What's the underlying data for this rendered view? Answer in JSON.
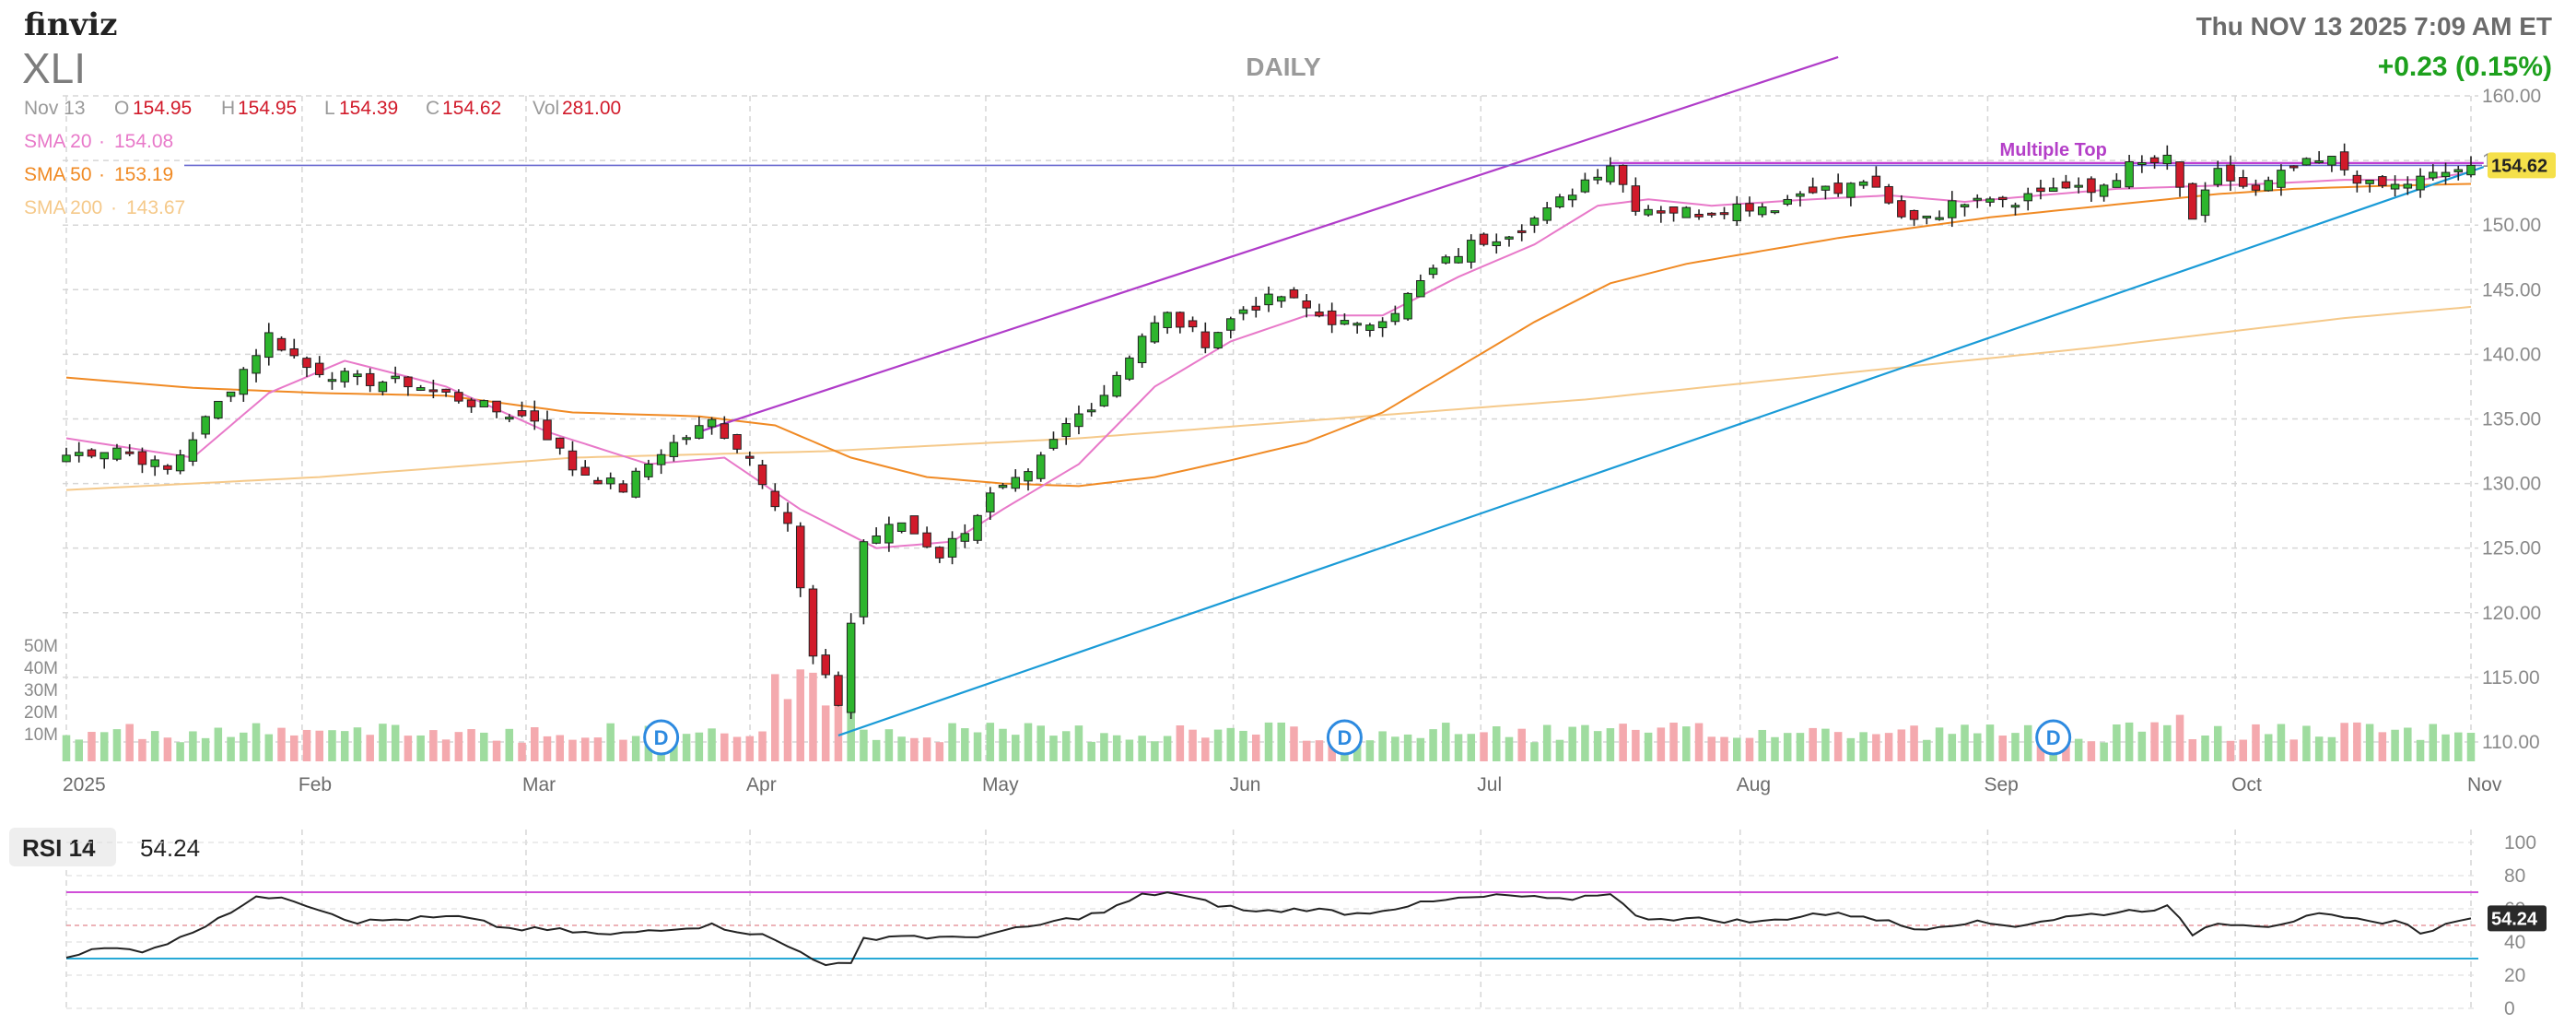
{
  "header": {
    "logo": "finviz",
    "ticker": "XLI",
    "timeframe": "DAILY",
    "datetime": "Thu NOV 13 2025 7:09 AM ET",
    "change": "+0.23 (0.15%)"
  },
  "ohlc": {
    "date": "Nov 13",
    "o_label": "O",
    "o": "154.95",
    "h_label": "H",
    "h": "154.95",
    "l_label": "L",
    "l": "154.39",
    "c_label": "C",
    "c": "154.62",
    "vol_label": "Vol",
    "vol": "281.00"
  },
  "sma_legend": [
    {
      "label": "SMA 20",
      "value": "154.08",
      "color": "#e879c9"
    },
    {
      "label": "SMA 50",
      "value": "153.19",
      "color": "#f08a24"
    },
    {
      "label": "SMA 200",
      "value": "143.67",
      "color": "#f5c98a"
    }
  ],
  "colors": {
    "up": "#2db52d",
    "down": "#d11a2a",
    "vol_up": "#9fdc9f",
    "vol_down": "#f4a9ae",
    "trend_upper": "#b03cc9",
    "trend_lower": "#1a9bd7",
    "resistance": "#c03fd0",
    "last_price_bg": "#f5e04a",
    "rsi_line": "#222222",
    "rsi_upper": "#d04fd8",
    "rsi_lower": "#27a9d6"
  },
  "annotations": {
    "pattern_label": "Multiple Top",
    "dividend_marker": "D",
    "last_price": "154.62"
  },
  "chart_data": {
    "type": "candlestick",
    "y_ticks": [
      "160.00",
      "155.00",
      "150.00",
      "145.00",
      "140.00",
      "135.00",
      "130.00",
      "125.00",
      "120.00",
      "115.00",
      "110.00"
    ],
    "ylim": [
      108.5,
      160
    ],
    "x_labels": [
      "2025",
      "Feb",
      "Mar",
      "Apr",
      "May",
      "Jun",
      "Jul",
      "Aug",
      "Sep",
      "Oct",
      "Nov"
    ],
    "volume_labels": [
      "50M",
      "40M",
      "30M",
      "20M",
      "10M"
    ],
    "anchors": [
      [
        0,
        132.2
      ],
      [
        4,
        132.8
      ],
      [
        8,
        131.0
      ],
      [
        13,
        137.5
      ],
      [
        16,
        141.5
      ],
      [
        19,
        139.0
      ],
      [
        23,
        138.0
      ],
      [
        27,
        137.8
      ],
      [
        31,
        136.6
      ],
      [
        34,
        135.6
      ],
      [
        37,
        135.0
      ],
      [
        40,
        131.2
      ],
      [
        44,
        129.6
      ],
      [
        47,
        132.5
      ],
      [
        51,
        134.8
      ],
      [
        54,
        132.0
      ],
      [
        57,
        127.0
      ],
      [
        59,
        116.5
      ],
      [
        61,
        113.0
      ],
      [
        63,
        125.5
      ],
      [
        66,
        127.0
      ],
      [
        69,
        124.5
      ],
      [
        71,
        126.5
      ],
      [
        73,
        129.0
      ],
      [
        76,
        130.5
      ],
      [
        79,
        134.5
      ],
      [
        82,
        137.0
      ],
      [
        85,
        141.5
      ],
      [
        87,
        143.0
      ],
      [
        90,
        141.0
      ],
      [
        93,
        143.5
      ],
      [
        96,
        144.5
      ],
      [
        99,
        143.0
      ],
      [
        102,
        142.0
      ],
      [
        105,
        143.5
      ],
      [
        108,
        146.5
      ],
      [
        111,
        148.5
      ],
      [
        114,
        149.5
      ],
      [
        117,
        151.0
      ],
      [
        120,
        153.5
      ],
      [
        122,
        154.8
      ],
      [
        124,
        151.5
      ],
      [
        126,
        151.2
      ],
      [
        129,
        151.0
      ],
      [
        132,
        151.5
      ],
      [
        135,
        151.5
      ],
      [
        138,
        153.0
      ],
      [
        140,
        152.5
      ],
      [
        142,
        153.5
      ],
      [
        145,
        150.5
      ],
      [
        148,
        151.0
      ],
      [
        151,
        152.5
      ],
      [
        154,
        152.0
      ],
      [
        157,
        153.0
      ],
      [
        160,
        152.5
      ],
      [
        163,
        154.5
      ],
      [
        166,
        155.0
      ],
      [
        168,
        150.5
      ],
      [
        170,
        154.0
      ],
      [
        173,
        152.5
      ],
      [
        176,
        154.5
      ],
      [
        179,
        155.0
      ],
      [
        182,
        153.0
      ],
      [
        184,
        153.0
      ],
      [
        187,
        153.8
      ],
      [
        190,
        154.62
      ]
    ],
    "bar_count": 191,
    "sma20_anchors": [
      [
        0,
        133.5
      ],
      [
        10,
        132.0
      ],
      [
        16,
        137.0
      ],
      [
        22,
        139.5
      ],
      [
        30,
        137.5
      ],
      [
        38,
        134.0
      ],
      [
        46,
        131.5
      ],
      [
        52,
        132.0
      ],
      [
        58,
        128.0
      ],
      [
        64,
        125.0
      ],
      [
        70,
        125.5
      ],
      [
        74,
        128.0
      ],
      [
        80,
        131.5
      ],
      [
        86,
        137.5
      ],
      [
        92,
        141.0
      ],
      [
        98,
        143.0
      ],
      [
        104,
        143.0
      ],
      [
        110,
        146.0
      ],
      [
        116,
        148.5
      ],
      [
        121,
        151.5
      ],
      [
        125,
        152.0
      ],
      [
        130,
        151.5
      ],
      [
        138,
        152.0
      ],
      [
        144,
        152.3
      ],
      [
        150,
        151.8
      ],
      [
        156,
        152.3
      ],
      [
        162,
        152.8
      ],
      [
        168,
        153.0
      ],
      [
        174,
        153.2
      ],
      [
        180,
        153.5
      ],
      [
        186,
        153.5
      ],
      [
        190,
        154.08
      ]
    ],
    "sma50_anchors": [
      [
        0,
        138.2
      ],
      [
        10,
        137.4
      ],
      [
        20,
        137.0
      ],
      [
        30,
        136.8
      ],
      [
        40,
        135.5
      ],
      [
        50,
        135.2
      ],
      [
        56,
        134.5
      ],
      [
        62,
        132.0
      ],
      [
        68,
        130.5
      ],
      [
        74,
        130.0
      ],
      [
        80,
        129.8
      ],
      [
        86,
        130.5
      ],
      [
        92,
        131.8
      ],
      [
        98,
        133.2
      ],
      [
        104,
        135.5
      ],
      [
        110,
        139.0
      ],
      [
        116,
        142.5
      ],
      [
        122,
        145.5
      ],
      [
        128,
        147.0
      ],
      [
        134,
        148.0
      ],
      [
        140,
        149.0
      ],
      [
        146,
        149.8
      ],
      [
        152,
        150.6
      ],
      [
        158,
        151.2
      ],
      [
        164,
        151.8
      ],
      [
        170,
        152.4
      ],
      [
        176,
        152.8
      ],
      [
        182,
        153.0
      ],
      [
        190,
        153.19
      ]
    ],
    "sma200_anchors": [
      [
        0,
        129.5
      ],
      [
        20,
        130.5
      ],
      [
        40,
        132.0
      ],
      [
        60,
        132.5
      ],
      [
        80,
        133.5
      ],
      [
        100,
        135.0
      ],
      [
        120,
        136.5
      ],
      [
        140,
        138.5
      ],
      [
        160,
        140.5
      ],
      [
        180,
        142.8
      ],
      [
        190,
        143.67
      ]
    ],
    "trendlines": [
      {
        "name": "upper",
        "from": [
          50,
          134.0
        ],
        "to": [
          140,
          163.0
        ]
      },
      {
        "name": "lower",
        "from": [
          61,
          110.5
        ],
        "to": [
          191,
          154.5
        ]
      },
      {
        "name": "resistance",
        "from": [
          122,
          154.8
        ],
        "to": [
          191,
          154.8
        ]
      }
    ],
    "dividends_at": [
      47,
      101,
      157
    ],
    "rsi": {
      "label": "RSI 14",
      "value": "54.24",
      "ticks": [
        "100",
        "80",
        "60",
        "40",
        "20",
        "0"
      ],
      "overbought": 70,
      "oversold": 30,
      "anchors": [
        [
          0,
          32
        ],
        [
          3,
          36
        ],
        [
          6,
          35
        ],
        [
          9,
          42
        ],
        [
          12,
          55
        ],
        [
          15,
          66
        ],
        [
          17,
          68
        ],
        [
          20,
          60
        ],
        [
          23,
          52
        ],
        [
          27,
          54
        ],
        [
          31,
          55
        ],
        [
          35,
          48
        ],
        [
          39,
          47
        ],
        [
          43,
          44
        ],
        [
          47,
          48
        ],
        [
          51,
          50
        ],
        [
          55,
          44
        ],
        [
          58,
          34
        ],
        [
          60,
          27
        ],
        [
          62,
          26
        ],
        [
          63,
          42
        ],
        [
          66,
          44
        ],
        [
          70,
          42
        ],
        [
          74,
          46
        ],
        [
          78,
          52
        ],
        [
          82,
          58
        ],
        [
          85,
          68
        ],
        [
          87,
          70
        ],
        [
          90,
          64
        ],
        [
          94,
          58
        ],
        [
          98,
          60
        ],
        [
          102,
          57
        ],
        [
          106,
          62
        ],
        [
          110,
          66
        ],
        [
          114,
          68
        ],
        [
          118,
          65
        ],
        [
          122,
          70
        ],
        [
          124,
          55
        ],
        [
          128,
          54
        ],
        [
          134,
          52
        ],
        [
          138,
          57
        ],
        [
          142,
          56
        ],
        [
          146,
          48
        ],
        [
          150,
          52
        ],
        [
          154,
          50
        ],
        [
          158,
          55
        ],
        [
          162,
          58
        ],
        [
          166,
          61
        ],
        [
          168,
          45
        ],
        [
          170,
          52
        ],
        [
          174,
          50
        ],
        [
          178,
          56
        ],
        [
          182,
          52
        ],
        [
          184,
          53
        ],
        [
          186,
          46
        ],
        [
          190,
          54.24
        ]
      ]
    }
  }
}
